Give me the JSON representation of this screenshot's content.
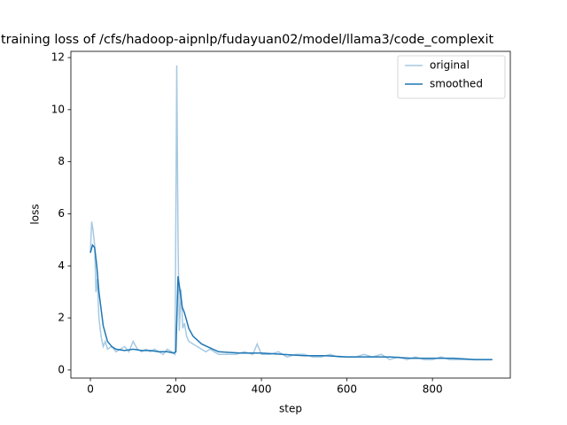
{
  "chart_data": {
    "type": "line",
    "title": "training loss of /cfs/hadoop-aipnlp/fudayuan02/model/llama3/code_complexit",
    "xlabel": "step",
    "ylabel": "loss",
    "xlim": [
      -45.6,
      982
    ],
    "ylim": [
      -0.31,
      12.24
    ],
    "xticks": [
      0,
      200,
      400,
      600,
      800
    ],
    "yticks": [
      0,
      2,
      4,
      6,
      8,
      10,
      12
    ],
    "legend": "upper right",
    "series": [
      {
        "name": "original",
        "color": "#a6c9e2",
        "x": [
          0,
          3,
          6,
          10,
          13,
          16,
          20,
          25,
          30,
          35,
          40,
          50,
          60,
          70,
          80,
          90,
          100,
          110,
          120,
          130,
          140,
          150,
          160,
          170,
          180,
          190,
          198,
          202,
          205,
          208,
          212,
          216,
          220,
          225,
          230,
          240,
          250,
          260,
          270,
          280,
          290,
          300,
          320,
          340,
          360,
          380,
          390,
          400,
          420,
          440,
          460,
          480,
          500,
          520,
          540,
          560,
          580,
          600,
          620,
          640,
          660,
          680,
          700,
          720,
          740,
          760,
          780,
          800,
          820,
          840,
          860,
          880,
          900,
          920,
          940
        ],
        "values": [
          4.5,
          5.7,
          5.4,
          4.8,
          3.0,
          3.5,
          2.0,
          1.3,
          0.9,
          1.1,
          0.8,
          0.9,
          0.7,
          0.8,
          0.9,
          0.7,
          1.1,
          0.8,
          0.7,
          0.8,
          0.7,
          0.8,
          0.7,
          0.6,
          0.8,
          0.7,
          0.6,
          11.7,
          5.0,
          1.5,
          3.1,
          1.6,
          1.8,
          1.3,
          1.1,
          1.0,
          0.9,
          0.8,
          0.7,
          0.8,
          0.7,
          0.6,
          0.6,
          0.6,
          0.7,
          0.6,
          1.0,
          0.6,
          0.6,
          0.7,
          0.5,
          0.6,
          0.6,
          0.5,
          0.5,
          0.6,
          0.5,
          0.5,
          0.5,
          0.6,
          0.5,
          0.6,
          0.4,
          0.5,
          0.4,
          0.5,
          0.4,
          0.4,
          0.5,
          0.4,
          0.4,
          0.4,
          0.4,
          0.4,
          0.4
        ]
      },
      {
        "name": "smoothed",
        "color": "#1f77b4",
        "x": [
          0,
          5,
          10,
          15,
          20,
          30,
          40,
          50,
          60,
          80,
          100,
          120,
          140,
          160,
          180,
          195,
          200,
          205,
          210,
          215,
          220,
          230,
          240,
          260,
          280,
          300,
          350,
          400,
          450,
          500,
          550,
          600,
          650,
          700,
          750,
          800,
          850,
          900,
          940
        ],
        "values": [
          4.5,
          4.8,
          4.7,
          4.0,
          3.0,
          1.7,
          1.1,
          0.9,
          0.8,
          0.75,
          0.8,
          0.75,
          0.75,
          0.7,
          0.7,
          0.65,
          0.7,
          3.6,
          3.0,
          2.4,
          2.2,
          1.6,
          1.3,
          1.0,
          0.85,
          0.7,
          0.65,
          0.65,
          0.6,
          0.55,
          0.55,
          0.5,
          0.5,
          0.5,
          0.45,
          0.45,
          0.45,
          0.4,
          0.4
        ]
      }
    ]
  }
}
